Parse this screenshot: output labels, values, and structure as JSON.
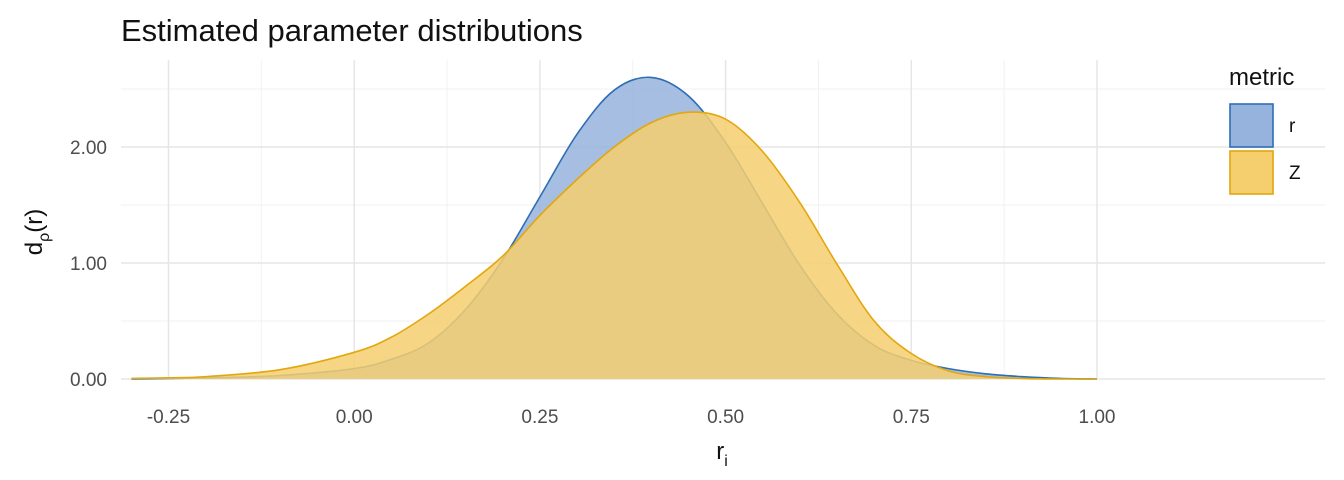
{
  "chart_data": {
    "type": "area",
    "title": "Estimated parameter distributions",
    "xlabel": {
      "main": "r",
      "sub": "i"
    },
    "ylabel": {
      "main": "d",
      "sub": "ρ",
      "suffix": "(r)"
    },
    "xlim": [
      -0.3,
      1.0
    ],
    "ylim": [
      0,
      2.6
    ],
    "x_ticks": [
      -0.25,
      0.0,
      0.25,
      0.5,
      0.75,
      1.0
    ],
    "x_tick_labels": [
      "-0.25",
      "0.00",
      "0.25",
      "0.50",
      "0.75",
      "1.00"
    ],
    "y_ticks": [
      0,
      1,
      2
    ],
    "y_tick_labels": [
      "0.00",
      "1.00",
      "2.00"
    ],
    "grid": true,
    "legend": {
      "title": "metric",
      "position": "top-right"
    },
    "series": [
      {
        "name": "r",
        "fill": "#95b3dc",
        "stroke": "#2f6db5",
        "x": [
          -0.3,
          -0.2,
          -0.1,
          0.0,
          0.05,
          0.1,
          0.15,
          0.2,
          0.25,
          0.3,
          0.35,
          0.4,
          0.45,
          0.5,
          0.55,
          0.6,
          0.65,
          0.7,
          0.75,
          0.8,
          0.85,
          0.9,
          0.95,
          1.0
        ],
        "y": [
          0.0,
          0.01,
          0.03,
          0.09,
          0.17,
          0.31,
          0.6,
          1.03,
          1.57,
          2.11,
          2.49,
          2.6,
          2.44,
          2.04,
          1.51,
          0.98,
          0.56,
          0.29,
          0.16,
          0.09,
          0.045,
          0.02,
          0.005,
          0.0
        ]
      },
      {
        "name": "Z",
        "fill": "#f5cf6e",
        "stroke": "#e3a70e",
        "x": [
          -0.3,
          -0.25,
          -0.2,
          -0.1,
          0.0,
          0.05,
          0.1,
          0.15,
          0.2,
          0.25,
          0.3,
          0.35,
          0.4,
          0.45,
          0.5,
          0.55,
          0.6,
          0.65,
          0.7,
          0.75,
          0.8,
          0.85,
          0.9,
          0.95,
          1.0
        ],
        "y": [
          0.005,
          0.01,
          0.02,
          0.08,
          0.23,
          0.36,
          0.56,
          0.8,
          1.06,
          1.41,
          1.72,
          2.0,
          2.21,
          2.3,
          2.24,
          1.96,
          1.52,
          0.99,
          0.5,
          0.22,
          0.07,
          0.02,
          0.005,
          0.0,
          0.0
        ]
      }
    ]
  }
}
